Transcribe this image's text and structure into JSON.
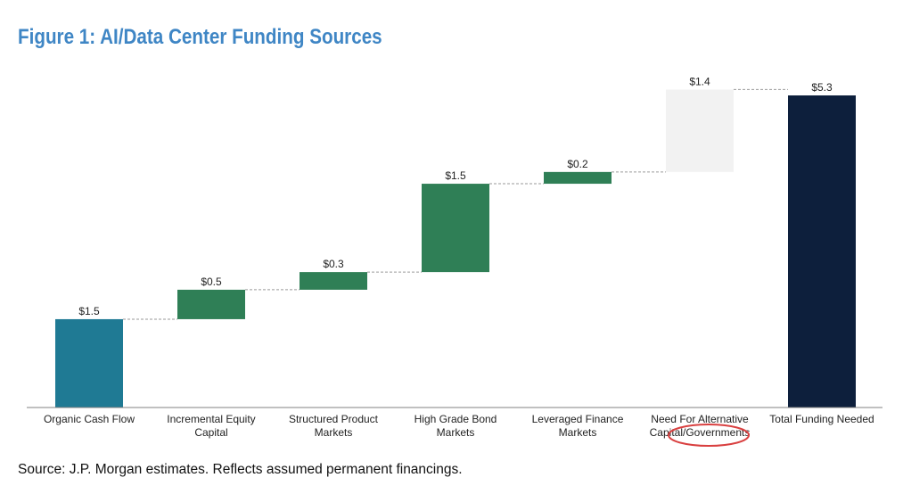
{
  "title": "Figure 1: AI/Data Center Funding Sources",
  "source": "Source: J.P. Morgan estimates. Reflects assumed permanent financings.",
  "colors": {
    "title": "#3f86c5",
    "organic": "#1f7a94",
    "green": "#2f7f56",
    "alternative": "#f2f2f2",
    "total": "#0d1f3c",
    "connector": "#9a9a9a",
    "axis": "#808080",
    "highlight": "#d94040"
  },
  "chart_data": {
    "type": "waterfall",
    "title": "Figure 1: AI/Data Center Funding Sources",
    "unit": "$ trillions",
    "ylim": [
      0,
      5.3
    ],
    "grid": false,
    "legend": "none",
    "categories": [
      [
        "Organic Cash Flow"
      ],
      [
        "Incremental Equity",
        "Capital"
      ],
      [
        "Structured Product",
        "Markets"
      ],
      [
        "High Grade Bond",
        "Markets"
      ],
      [
        "Leveraged Finance",
        "Markets"
      ],
      [
        "Need For Alternative",
        "Capital/Governments"
      ],
      [
        "Total Funding Needed"
      ]
    ],
    "values": [
      1.5,
      0.5,
      0.3,
      1.5,
      0.2,
      1.4,
      5.3
    ],
    "value_labels": [
      "$1.5",
      "$0.5",
      "$0.3",
      "$1.5",
      "$0.2",
      "$1.4",
      "$5.3"
    ],
    "kinds": [
      "organic",
      "green",
      "green",
      "green",
      "green",
      "alternative",
      "total"
    ],
    "highlighted_category_index": 5
  }
}
